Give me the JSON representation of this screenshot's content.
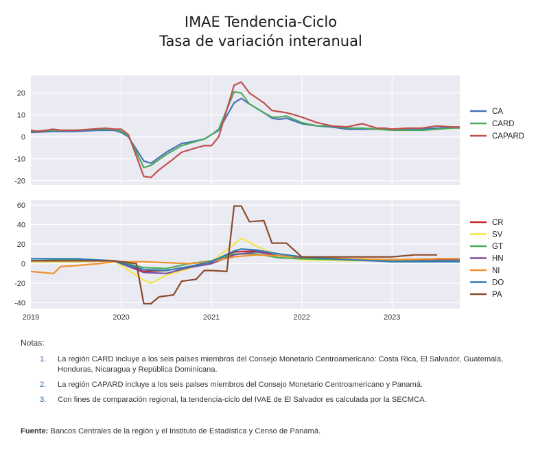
{
  "title": {
    "line1": "IMAE Tendencia-Ciclo",
    "line2": "Tasa de variación interanual"
  },
  "chart_data": [
    {
      "type": "line",
      "ylim": [
        -22,
        28
      ],
      "yticks": [
        -20,
        -10,
        0,
        10,
        20
      ],
      "xlim": [
        2019.0,
        2023.75
      ],
      "grid": true,
      "legend": "right",
      "series": [
        {
          "name": "CA",
          "color": "#4472b8",
          "x": [
            2019.0,
            2019.25,
            2019.5,
            2019.75,
            2019.92,
            2020.0,
            2020.08,
            2020.25,
            2020.33,
            2020.5,
            2020.67,
            2020.75,
            2020.92,
            2021.0,
            2021.08,
            2021.25,
            2021.33,
            2021.42,
            2021.58,
            2021.67,
            2021.75,
            2021.83,
            2022.0,
            2022.17,
            2022.33,
            2022.5,
            2022.67,
            2022.83,
            2023.0,
            2023.17,
            2023.33,
            2023.5,
            2023.67,
            2023.75
          ],
          "y": [
            2,
            2.5,
            2.5,
            3,
            3,
            2,
            0,
            -11,
            -12,
            -7,
            -3,
            -2.5,
            -1,
            1,
            3,
            15.5,
            17.5,
            15,
            11,
            8.5,
            8,
            8.5,
            6,
            5,
            4.5,
            3.5,
            3.5,
            3.5,
            3.5,
            3.5,
            3.5,
            4,
            4.5,
            4.5
          ]
        },
        {
          "name": "CARD",
          "color": "#4caa5a",
          "x": [
            2019.0,
            2019.25,
            2019.5,
            2019.75,
            2019.92,
            2020.0,
            2020.08,
            2020.25,
            2020.33,
            2020.5,
            2020.67,
            2020.75,
            2020.92,
            2021.0,
            2021.08,
            2021.25,
            2021.33,
            2021.42,
            2021.58,
            2021.67,
            2021.75,
            2021.83,
            2022.0,
            2022.17,
            2022.33,
            2022.5,
            2022.67,
            2022.83,
            2023.0,
            2023.17,
            2023.33,
            2023.5,
            2023.67,
            2023.75
          ],
          "y": [
            2.5,
            3,
            3,
            3.5,
            3.5,
            2.5,
            0.5,
            -14,
            -13,
            -8,
            -4,
            -3,
            -1,
            1,
            3.5,
            20.5,
            20,
            15,
            11,
            9,
            9,
            9.5,
            6.5,
            5,
            5,
            4,
            4,
            3.5,
            3,
            3,
            3,
            3.5,
            4,
            4
          ]
        },
        {
          "name": "CAPARD",
          "color": "#c0504d",
          "x": [
            2019.0,
            2019.08,
            2019.25,
            2019.33,
            2019.5,
            2019.67,
            2019.83,
            2019.92,
            2020.0,
            2020.08,
            2020.25,
            2020.33,
            2020.42,
            2020.58,
            2020.67,
            2020.83,
            2020.92,
            2021.0,
            2021.08,
            2021.25,
            2021.33,
            2021.42,
            2021.58,
            2021.67,
            2021.83,
            2021.92,
            2022.0,
            2022.17,
            2022.33,
            2022.5,
            2022.67,
            2022.83,
            2022.92,
            2023.0,
            2023.17,
            2023.33,
            2023.5,
            2023.67,
            2023.75
          ],
          "y": [
            3,
            2.5,
            3.5,
            3,
            3,
            3.5,
            4,
            3.5,
            3.5,
            1,
            -18,
            -18.5,
            -15,
            -10,
            -7,
            -5,
            -4,
            -4,
            0,
            23.5,
            25,
            20,
            15.5,
            12,
            11,
            10,
            9,
            6.5,
            5,
            4.5,
            6,
            4,
            4,
            3.5,
            4,
            4,
            5,
            4.5,
            4.5
          ]
        }
      ]
    },
    {
      "type": "line",
      "ylim": [
        -46,
        65
      ],
      "yticks": [
        -40,
        -20,
        0,
        20,
        40,
        60
      ],
      "xlim": [
        2019.0,
        2023.75
      ],
      "xticks": [
        "2019",
        "2020",
        "2021",
        "2022",
        "2023"
      ],
      "grid": true,
      "legend": "right",
      "series": [
        {
          "name": "CR",
          "color": "#c62828",
          "x": [
            2019.0,
            2019.5,
            2019.92,
            2020.25,
            2020.5,
            2020.75,
            2021.0,
            2021.25,
            2021.5,
            2021.75,
            2022.0,
            2022.5,
            2023.0,
            2023.5,
            2023.75
          ],
          "y": [
            2,
            2,
            3,
            -8,
            -7,
            -3,
            1,
            12,
            13,
            8,
            6,
            4,
            4,
            5,
            5
          ]
        },
        {
          "name": "SV",
          "color": "#f2e64c",
          "x": [
            2019.0,
            2019.5,
            2019.92,
            2020.25,
            2020.33,
            2020.5,
            2020.75,
            2021.0,
            2021.25,
            2021.33,
            2021.5,
            2021.75,
            2022.0,
            2022.5,
            2023.0
          ],
          "y": [
            2,
            2,
            3,
            -17,
            -20,
            -12,
            -5,
            2,
            20,
            26,
            18,
            8,
            4,
            3,
            3
          ]
        },
        {
          "name": "GT",
          "color": "#4caa5a",
          "x": [
            2019.0,
            2019.5,
            2019.92,
            2020.25,
            2020.5,
            2020.75,
            2021.0,
            2021.25,
            2021.5,
            2021.75,
            2022.0,
            2022.5,
            2023.0,
            2023.5,
            2023.75
          ],
          "y": [
            3,
            4,
            3,
            -4,
            -5,
            0,
            3,
            10,
            10,
            6,
            5,
            4,
            3,
            3,
            3
          ]
        },
        {
          "name": "HN",
          "color": "#7b4fa0",
          "x": [
            2019.0,
            2019.5,
            2019.92,
            2020.25,
            2020.5,
            2020.75,
            2021.0,
            2021.25,
            2021.5,
            2021.75,
            2022.0,
            2022.5,
            2023.0,
            2023.5,
            2023.75
          ],
          "y": [
            3,
            3,
            3,
            -9,
            -10,
            -4,
            0,
            9,
            12,
            8,
            7,
            5,
            4,
            4,
            4
          ]
        },
        {
          "name": "NI",
          "color": "#f0922c",
          "x": [
            2019.0,
            2019.25,
            2019.33,
            2019.5,
            2019.75,
            2019.92,
            2020.25,
            2020.5,
            2020.75,
            2021.0,
            2021.25,
            2021.5,
            2021.75,
            2022.0,
            2022.5,
            2023.0,
            2023.5,
            2023.75
          ],
          "y": [
            -8,
            -10,
            -3,
            -2,
            0,
            2,
            2,
            1,
            0,
            2,
            7,
            9,
            8,
            7,
            5,
            4,
            5,
            5
          ]
        },
        {
          "name": "DO",
          "color": "#2c7bb8",
          "x": [
            2019.0,
            2019.5,
            2019.92,
            2020.25,
            2020.5,
            2020.75,
            2021.0,
            2021.25,
            2021.33,
            2021.5,
            2021.75,
            2022.0,
            2022.5,
            2023.0,
            2023.5,
            2023.75
          ],
          "y": [
            5,
            5,
            3,
            -6,
            -7,
            -3,
            2,
            13,
            15,
            14,
            10,
            7,
            4,
            2,
            2,
            2
          ]
        },
        {
          "name": "PA",
          "color": "#8b4a2b",
          "x": [
            2019.0,
            2019.5,
            2019.92,
            2020.17,
            2020.25,
            2020.33,
            2020.42,
            2020.58,
            2020.67,
            2020.83,
            2020.92,
            2021.0,
            2021.17,
            2021.25,
            2021.33,
            2021.42,
            2021.58,
            2021.67,
            2021.83,
            2022.0,
            2022.5,
            2023.0,
            2023.25,
            2023.5
          ],
          "y": [
            3,
            3,
            3,
            0,
            -41,
            -41,
            -34,
            -32,
            -18,
            -16,
            -7,
            -7,
            -8,
            59,
            59,
            43,
            44,
            21,
            21,
            7,
            7,
            7,
            9,
            9
          ]
        }
      ]
    }
  ],
  "notes": {
    "heading": "Notas:",
    "items": [
      {
        "num": "1.",
        "text": "La región CARD incluye a los seis países miembros del Consejo Monetario Centroamericano: Costa Rica, El Salvador, Guatemala, Honduras, Nicaragua y República Dominicana."
      },
      {
        "num": "2.",
        "text": "La región CAPARD incluye a los seis países miembros del Consejo Monetario Centroamericano y Panamá."
      },
      {
        "num": "3.",
        "text": "Con fines de comparación regional, la tendencia-ciclo del IVAE de El Salvador es calculada por la SECMCA."
      }
    ]
  },
  "source": {
    "label": "Fuente:",
    "text": "Bancos Centrales de la región y el Instituto de Estadística y Censo de Panamá."
  },
  "colors": {
    "plot_background": "#eaeaf2",
    "grid": "#ffffff"
  }
}
